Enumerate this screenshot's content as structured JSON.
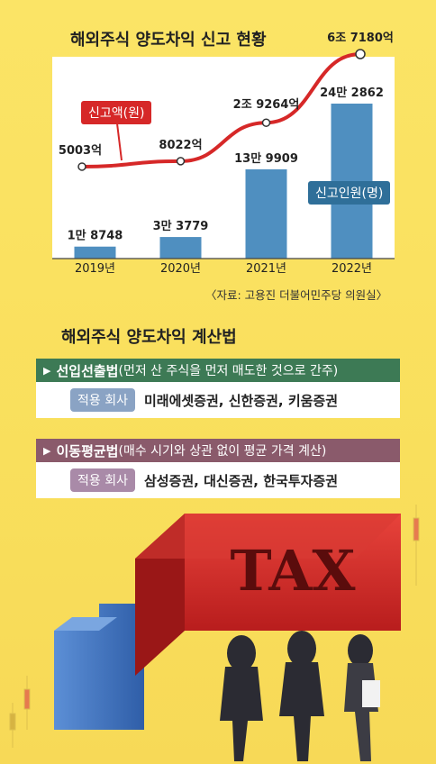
{
  "chart_title": "해외주식 양도차익 신고 현황",
  "source": "〈자료: 고용진 더불어민주당 의원실〉",
  "chart_data": {
    "type": "bar",
    "categories": [
      "2019년",
      "2020년",
      "2021년",
      "2022년"
    ],
    "series": [
      {
        "name": "신고인원(명)",
        "type": "bar",
        "values": [
          18748,
          33779,
          139909,
          242862
        ],
        "labels": [
          "1만 8748",
          "3만 3779",
          "13만 9909",
          "24만 2862"
        ]
      },
      {
        "name": "신고액(원)",
        "type": "line",
        "values": [
          5003,
          8022,
          29264,
          67180
        ],
        "labels": [
          "5003억",
          "8022억",
          "2조 9264억",
          "6조 7180억"
        ]
      }
    ],
    "colors": {
      "bar": "#4f8fc0",
      "line": "#d62828"
    }
  },
  "method_title": "해외주식 양도차익 계산법",
  "methods": [
    {
      "name": "선입선출법",
      "desc": "(먼저 산 주식을 먼저 매도한 것으로 간주)",
      "badge": "적용 회사",
      "companies": "미래에셋증권, 신한증권, 키움증권",
      "color": "#3d7a55",
      "badge_color": "#8aa3c4"
    },
    {
      "name": "이동평균법",
      "desc": "(매수 시기와 상관 없이 평균 가격 계산)",
      "badge": "적용 회사",
      "companies": "삼성증권, 대신증권, 한국투자증권",
      "color": "#8a5a6b",
      "badge_color": "#a98aa8"
    }
  ],
  "illustration_text": "TAX"
}
